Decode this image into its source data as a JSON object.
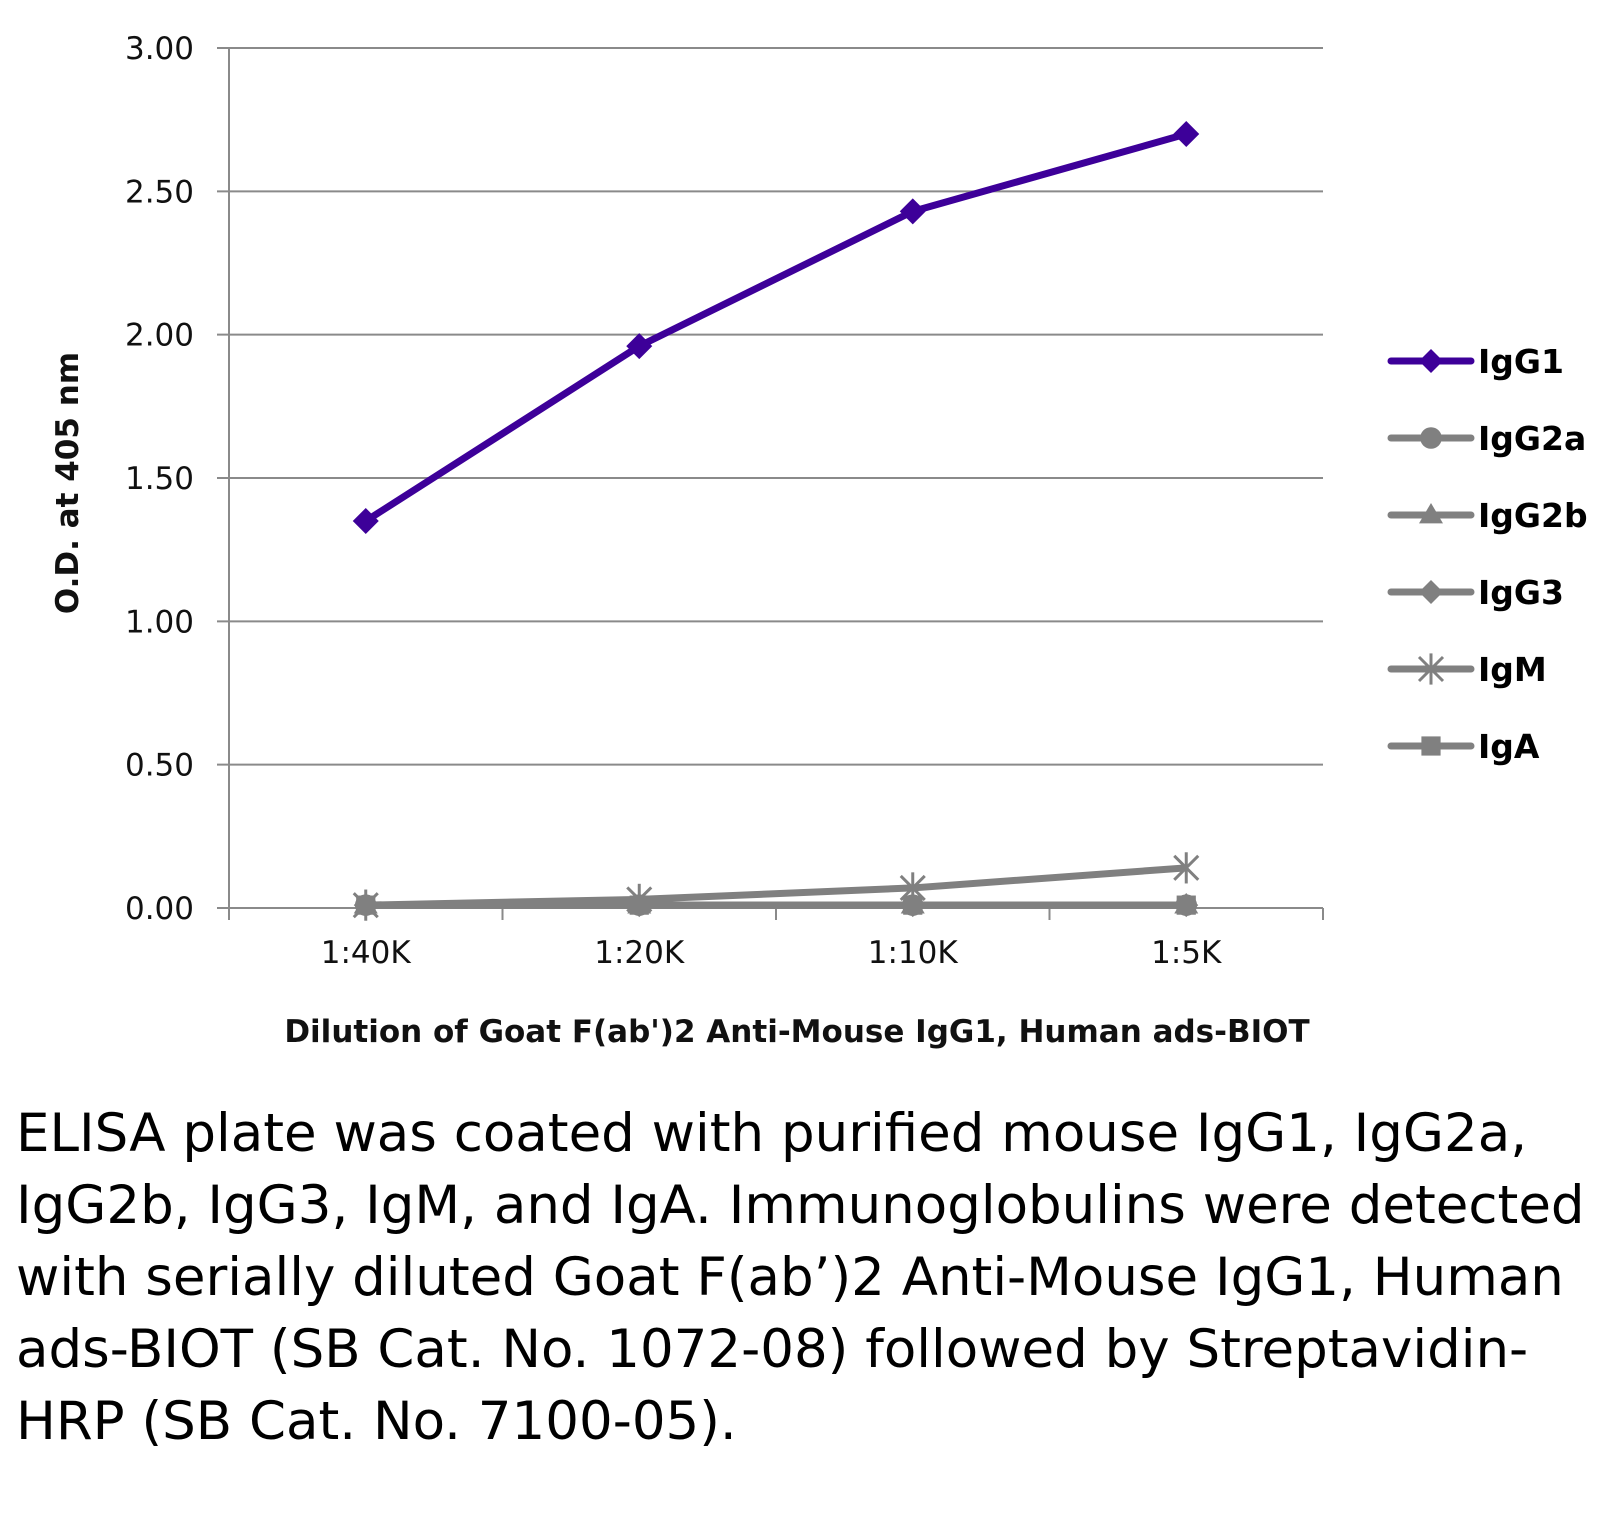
{
  "chart_data": {
    "type": "line",
    "title": "",
    "xlabel": "Dilution of Goat F(ab')2 Anti-Mouse IgG1, Human ads-BIOT",
    "ylabel": "O.D. at 405 nm",
    "categories": [
      "1:40K",
      "1:20K",
      "1:10K",
      "1:5K"
    ],
    "ylim": [
      0,
      3
    ],
    "yticks": [
      "0.00",
      "0.50",
      "1.00",
      "1.50",
      "2.00",
      "2.50",
      "3.00"
    ],
    "grid": true,
    "legend_position": "right",
    "series": [
      {
        "name": "IgG1",
        "marker": "diamond",
        "color": "#3d0099",
        "values": [
          1.35,
          1.96,
          2.43,
          2.7
        ]
      },
      {
        "name": "IgG2a",
        "marker": "circle",
        "color": "#808080",
        "values": [
          0.01,
          0.01,
          0.01,
          0.01
        ]
      },
      {
        "name": "IgG2b",
        "marker": "triangle",
        "color": "#808080",
        "values": [
          0.01,
          0.01,
          0.01,
          0.01
        ]
      },
      {
        "name": "IgG3",
        "marker": "diamond",
        "color": "#808080",
        "values": [
          0.01,
          0.01,
          0.01,
          0.01
        ]
      },
      {
        "name": "IgM",
        "marker": "star",
        "color": "#808080",
        "values": [
          0.01,
          0.03,
          0.07,
          0.14
        ]
      },
      {
        "name": "IgA",
        "marker": "square",
        "color": "#808080",
        "values": [
          0.01,
          0.01,
          0.01,
          0.01
        ]
      }
    ]
  },
  "caption": "ELISA plate was coated with purified mouse IgG1, IgG2a, IgG2b, IgG3, IgM, and IgA. Immunoglobulins were detected with serially diluted Goat F(ab’)2 Anti-Mouse IgG1, Human ads-BIOT (SB Cat. No. 1072-08) followed by Streptavidin-HRP (SB Cat. No. 7100-05)."
}
